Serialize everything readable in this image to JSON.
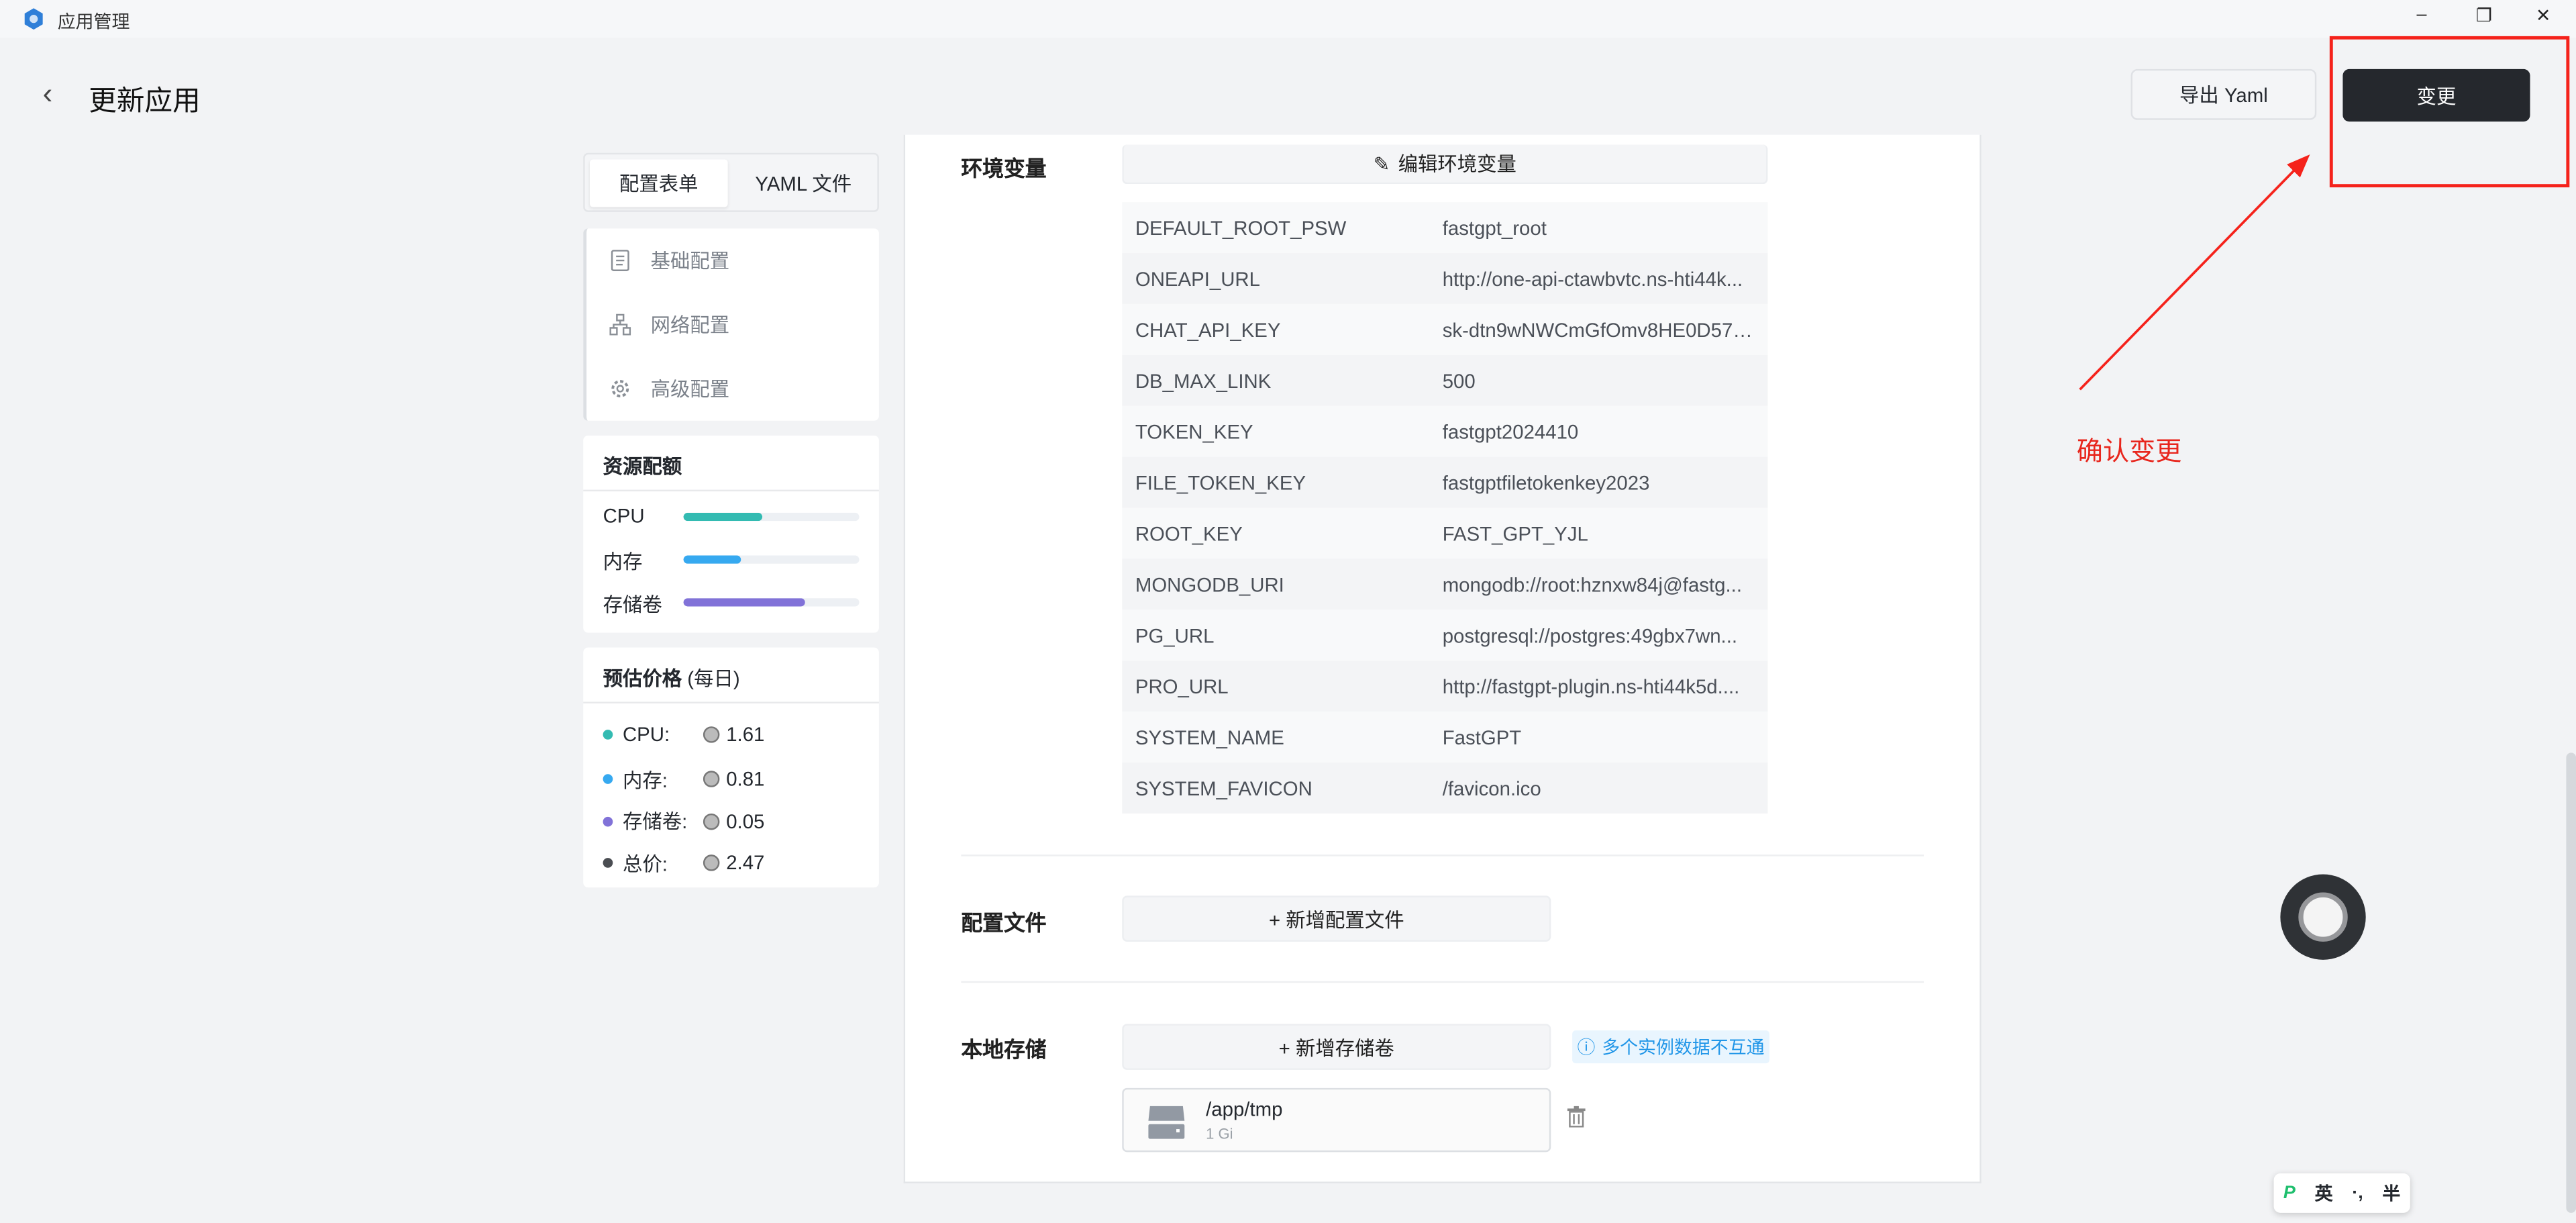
{
  "window": {
    "title": "应用管理",
    "controls": [
      "minimize",
      "restore",
      "close"
    ]
  },
  "header": {
    "title": "更新应用",
    "export_label": "导出 Yaml",
    "change_label": "变更"
  },
  "annotation": {
    "text": "确认变更",
    "color": "#f5221b"
  },
  "sidebar": {
    "tabs": [
      {
        "label": "配置表单",
        "active": true
      },
      {
        "label": "YAML 文件",
        "active": false
      }
    ],
    "nav": [
      {
        "label": "基础配置",
        "icon": "document-icon"
      },
      {
        "label": "网络配置",
        "icon": "network-icon"
      },
      {
        "label": "高级配置",
        "icon": "gear-icon"
      }
    ],
    "quota": {
      "title": "资源配额",
      "items": [
        {
          "label": "CPU",
          "percent": 45,
          "color": "#33bbb2"
        },
        {
          "label": "内存",
          "percent": 33,
          "color": "#36a9f0"
        },
        {
          "label": "存储卷",
          "percent": 69,
          "color": "#8172d8"
        }
      ]
    },
    "price": {
      "title": "预估价格",
      "subtitle": "(每日)",
      "items": [
        {
          "label": "CPU:",
          "value": "1.61",
          "color": "#33bbb2"
        },
        {
          "label": "内存:",
          "value": "0.81",
          "color": "#36a9f0"
        },
        {
          "label": "存储卷:",
          "value": "0.05",
          "color": "#8172d8"
        },
        {
          "label": "总价:",
          "value": "2.47",
          "color": "#4a4d52"
        }
      ]
    }
  },
  "main": {
    "env": {
      "label": "环境变量",
      "edit_label": "编辑环境变量",
      "rows": [
        {
          "key": "DEFAULT_ROOT_PSW",
          "value": "fastgpt_root"
        },
        {
          "key": "ONEAPI_URL",
          "value": "http://one-api-ctawbvtc.ns-hti44k..."
        },
        {
          "key": "CHAT_API_KEY",
          "value": "sk-dtn9wNWCmGfOmv8HE0D573..."
        },
        {
          "key": "DB_MAX_LINK",
          "value": "500"
        },
        {
          "key": "TOKEN_KEY",
          "value": "fastgpt2024410"
        },
        {
          "key": "FILE_TOKEN_KEY",
          "value": "fastgptfiletokenkey2023"
        },
        {
          "key": "ROOT_KEY",
          "value": "FAST_GPT_YJL"
        },
        {
          "key": "MONGODB_URI",
          "value": "mongodb://root:hznxw84j@fastg..."
        },
        {
          "key": "PG_URL",
          "value": "postgresql://postgres:49gbx7wn..."
        },
        {
          "key": "PRO_URL",
          "value": "http://fastgpt-plugin.ns-hti44k5d...."
        },
        {
          "key": "SYSTEM_NAME",
          "value": "FastGPT"
        },
        {
          "key": "SYSTEM_FAVICON",
          "value": "/favicon.ico"
        }
      ]
    },
    "config_files": {
      "label": "配置文件",
      "add_label": "+ 新增配置文件"
    },
    "storage": {
      "label": "本地存储",
      "add_label": "+ 新增存储卷",
      "info": "多个实例数据不互通",
      "volumes": [
        {
          "path": "/app/tmp",
          "size": "1 Gi"
        }
      ]
    }
  },
  "ime": {
    "mode": "英",
    "punct": "·,",
    "width": "半"
  }
}
